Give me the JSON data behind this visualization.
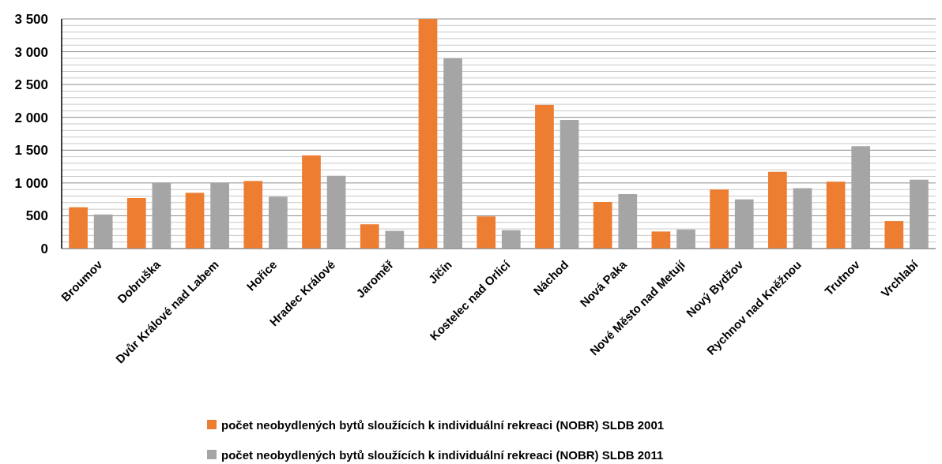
{
  "chart_data": {
    "type": "bar",
    "categories": [
      "Broumov",
      "Dobruška",
      "Dvůr Králové nad Labem",
      "Hořice",
      "Hradec Králové",
      "Jaroměř",
      "Jičín",
      "Kostelec nad Orlicí",
      "Náchod",
      "Nová Paka",
      "Nové Město nad Metují",
      "Nový Bydžov",
      "Rychnov nad Kněžnou",
      "Trutnov",
      "Vrchlabí"
    ],
    "series": [
      {
        "name": "počet neobydlených bytů sloužících k individuální rekreaci (NOBR) SLDB 2001",
        "color": "#ed7d31",
        "values": [
          630,
          770,
          850,
          1030,
          1420,
          370,
          3500,
          490,
          2190,
          710,
          260,
          900,
          1170,
          1020,
          420
        ]
      },
      {
        "name": "počet neobydlených bytů sloužících k individuální rekreaci (NOBR) SLDB 2011",
        "color": "#a5a5a5",
        "values": [
          520,
          1000,
          1000,
          790,
          1110,
          270,
          2900,
          280,
          1960,
          830,
          290,
          750,
          920,
          1560,
          1050
        ]
      }
    ],
    "ylim": [
      0,
      3500
    ],
    "yticks": [
      0,
      {
        "value": 100,
        "label": null
      },
      {
        "value": 200,
        "label": null
      },
      {
        "value": 300,
        "label": null
      },
      {
        "value": 400,
        "label": null
      },
      500,
      {
        "value": 600,
        "label": null
      },
      {
        "value": 700,
        "label": null
      },
      {
        "value": 800,
        "label": null
      },
      {
        "value": 900,
        "label": null
      },
      {
        "value": 1000,
        "label": "1 000"
      },
      {
        "value": 1100,
        "label": null
      },
      {
        "value": 1200,
        "label": null
      },
      {
        "value": 1300,
        "label": null
      },
      {
        "value": 1400,
        "label": null
      },
      {
        "value": 1500,
        "label": "1 500"
      },
      {
        "value": 1600,
        "label": null
      },
      {
        "value": 1700,
        "label": null
      },
      {
        "value": 1800,
        "label": null
      },
      {
        "value": 1900,
        "label": null
      },
      {
        "value": 2000,
        "label": "2 000"
      },
      {
        "value": 2100,
        "label": null
      },
      {
        "value": 2200,
        "label": null
      },
      {
        "value": 2300,
        "label": null
      },
      {
        "value": 2400,
        "label": null
      },
      {
        "value": 2500,
        "label": "2 500"
      },
      {
        "value": 2600,
        "label": null
      },
      {
        "value": 2700,
        "label": null
      },
      {
        "value": 2800,
        "label": null
      },
      {
        "value": 2900,
        "label": null
      },
      {
        "value": 3000,
        "label": "3 000"
      },
      {
        "value": 3100,
        "label": null
      },
      {
        "value": 3200,
        "label": null
      },
      {
        "value": 3300,
        "label": null
      },
      {
        "value": 3400,
        "label": null
      },
      {
        "value": 3500,
        "label": "3 500"
      }
    ],
    "grid": "y",
    "legend": "bottom"
  }
}
